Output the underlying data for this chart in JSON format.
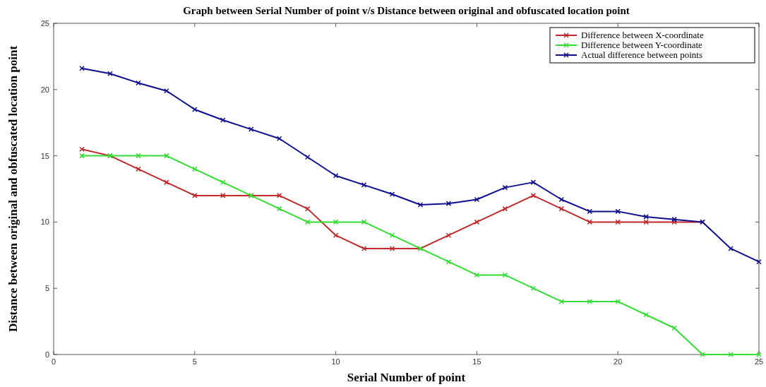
{
  "chart_data": {
    "type": "line",
    "title": "Graph between Serial Number of point v/s Distance between original and obfuscated location point",
    "xlabel": "Serial Number of point",
    "ylabel": "Distance between original and obfuscated location point",
    "x": [
      1,
      2,
      3,
      4,
      5,
      6,
      7,
      8,
      9,
      10,
      11,
      12,
      13,
      14,
      15,
      16,
      17,
      18,
      19,
      20,
      21,
      22,
      23,
      24,
      25
    ],
    "series": [
      {
        "name": "Difference between X-coordinate",
        "color": "#c0282a",
        "values": [
          15.5,
          15,
          14,
          13,
          12,
          12,
          12,
          12,
          11,
          9,
          8,
          8,
          8,
          9,
          10,
          11,
          12,
          11,
          10,
          10,
          10,
          10,
          10,
          null,
          null
        ]
      },
      {
        "name": "Difference between Y-coordinate",
        "color": "#33dd33",
        "values": [
          15,
          15,
          15,
          15,
          14,
          13,
          12,
          11,
          10,
          10,
          10,
          9,
          8,
          7,
          6,
          6,
          5,
          4,
          4,
          4,
          3,
          2,
          0,
          0,
          0
        ]
      },
      {
        "name": "Actual difference between points",
        "color": "#0d0d8f",
        "values": [
          21.6,
          21.2,
          20.5,
          19.9,
          18.5,
          17.7,
          17.0,
          16.3,
          14.9,
          13.5,
          12.8,
          12.1,
          11.3,
          11.4,
          11.7,
          12.6,
          13.0,
          11.7,
          10.8,
          10.8,
          10.4,
          10.2,
          10.0,
          8.0,
          7.0
        ]
      }
    ],
    "xlim": [
      0,
      25
    ],
    "xticks": [
      0,
      5,
      10,
      15,
      20,
      25
    ],
    "ylim": [
      0,
      25
    ],
    "yticks": [
      0,
      5,
      10,
      15,
      20,
      25
    ],
    "grid": false,
    "legend": "top right",
    "marker": "cross",
    "line_style": "solid"
  }
}
